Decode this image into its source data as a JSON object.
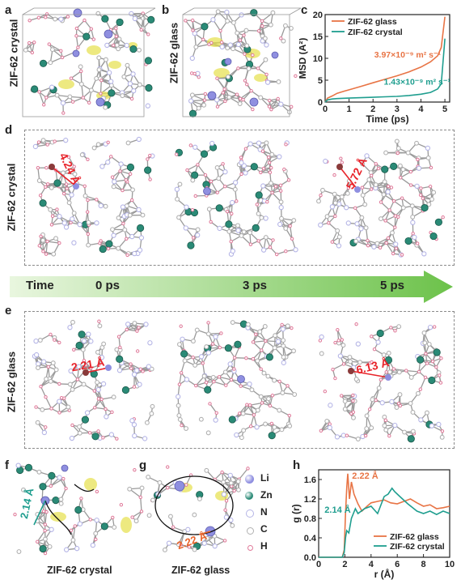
{
  "panels": {
    "a": {
      "letter": "a",
      "side_label": "ZIF-62 crystal"
    },
    "b": {
      "letter": "b",
      "side_label": "ZIF-62 glass"
    },
    "c": {
      "letter": "c"
    },
    "d": {
      "letter": "d",
      "side_label": "ZIF-62 crystal",
      "distances": [
        "4.24 Å",
        "5.72 Å"
      ]
    },
    "e": {
      "letter": "e",
      "side_label": "ZIF-62 glass",
      "distances": [
        "2.21 Å",
        "6.13 Å"
      ]
    },
    "f": {
      "letter": "f",
      "caption": "ZIF-62 crystal",
      "distance": "2.14 Å"
    },
    "g": {
      "letter": "g",
      "caption": "ZIF-62 glass",
      "distance": "2.22 Å"
    },
    "h": {
      "letter": "h"
    }
  },
  "timeline": {
    "label": "Time",
    "t0": "0 ps",
    "t1": "3 ps",
    "t2": "5 ps"
  },
  "legend_atoms": [
    {
      "symbol": "Li",
      "color": "#8f8fe0"
    },
    {
      "symbol": "Zn",
      "color": "#2a8a76"
    },
    {
      "symbol": "N",
      "color": "#b5b5e6"
    },
    {
      "symbol": "C",
      "color": "#b0b0b0"
    },
    {
      "symbol": "H",
      "color": "#e07a9a"
    }
  ],
  "chart_data": [
    {
      "panel": "c",
      "type": "line",
      "xlabel": "Time (ps)",
      "ylabel": "MSD (Å²)",
      "xlim": [
        0,
        5.2
      ],
      "ylim": [
        0,
        20
      ],
      "xticks": [
        "0",
        "1",
        "2",
        "3",
        "4",
        "5"
      ],
      "yticks": [
        "0",
        "5",
        "10",
        "15",
        "20"
      ],
      "legend_placement": "top-left",
      "series": [
        {
          "name": "ZIF-62 glass",
          "color": "#e87445",
          "x": [
            0,
            0.1,
            0.3,
            0.5,
            0.8,
            1.0,
            1.5,
            2.0,
            2.5,
            3.0,
            3.5,
            4.0,
            4.4,
            4.7,
            4.85,
            5.0
          ],
          "y": [
            0,
            0.9,
            1.4,
            2.0,
            2.5,
            2.8,
            3.6,
            4.4,
            5.2,
            6.0,
            6.9,
            8.0,
            9.2,
            10.6,
            12.5,
            19.5
          ],
          "annotation": "3.97×10⁻⁹ m² s⁻¹"
        },
        {
          "name": "ZIF-62 crystal",
          "color": "#1f9e8f",
          "x": [
            0,
            0.1,
            0.3,
            0.5,
            1.0,
            1.5,
            2.0,
            2.5,
            3.0,
            3.5,
            4.0,
            4.4,
            4.7,
            4.85,
            5.0
          ],
          "y": [
            0,
            0.5,
            0.7,
            0.8,
            0.9,
            1.0,
            1.1,
            1.2,
            1.3,
            1.5,
            1.8,
            2.2,
            3.0,
            4.2,
            14.5
          ],
          "annotation": "1.43×10⁻⁹ m² s⁻¹"
        }
      ]
    },
    {
      "panel": "h",
      "type": "line",
      "xlabel": "r (Å)",
      "ylabel": "g (r)",
      "xlim": [
        0,
        10
      ],
      "ylim": [
        0,
        1.8
      ],
      "xticks": [
        "0",
        "2",
        "4",
        "6",
        "8",
        "10"
      ],
      "yticks": [
        "0.0",
        "0.4",
        "0.8",
        "1.2",
        "1.6"
      ],
      "legend_placement": "bottom-right",
      "series": [
        {
          "name": "ZIF-62 glass",
          "color": "#e87445",
          "x": [
            0,
            1.8,
            1.95,
            2.05,
            2.15,
            2.22,
            2.35,
            2.5,
            2.7,
            3.0,
            3.3,
            3.7,
            4.0,
            4.5,
            5.0,
            5.5,
            6.0,
            6.5,
            7.0,
            7.5,
            8.0,
            8.5,
            9.0,
            9.5,
            10.0
          ],
          "y": [
            0,
            0,
            0.15,
            0.9,
            1.45,
            1.72,
            1.2,
            1.55,
            1.3,
            1.1,
            0.95,
            1.05,
            1.12,
            1.15,
            1.18,
            1.12,
            1.1,
            1.15,
            1.2,
            1.12,
            1.05,
            1.08,
            1.0,
            1.02,
            1.05
          ]
        },
        {
          "name": "ZIF-62 crystal",
          "color": "#1f9e8f",
          "x": [
            0,
            1.8,
            1.95,
            2.05,
            2.14,
            2.3,
            2.5,
            2.8,
            3.0,
            3.5,
            4.0,
            4.5,
            5.0,
            5.3,
            5.6,
            5.8,
            6.2,
            6.8,
            7.5,
            8.0,
            8.5,
            9.0,
            9.5,
            10.0
          ],
          "y": [
            0,
            0,
            0.1,
            0.4,
            0.55,
            0.5,
            0.8,
            1.0,
            0.9,
            1.0,
            1.05,
            0.9,
            1.25,
            1.3,
            1.42,
            1.35,
            1.25,
            1.1,
            0.95,
            0.9,
            0.95,
            0.88,
            0.95,
            0.9
          ]
        }
      ],
      "annotations": [
        "2.22 Å",
        "2.14 Å"
      ]
    }
  ]
}
